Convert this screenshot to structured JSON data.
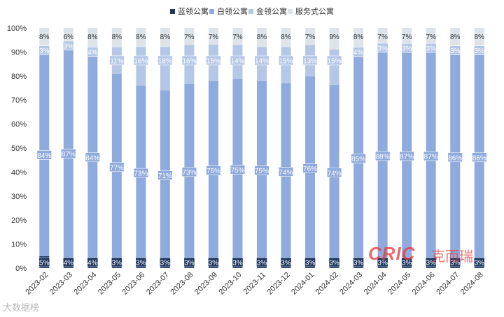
{
  "chart_data": {
    "type": "bar",
    "stacked": true,
    "percent": true,
    "categories": [
      "2023-02",
      "2023-03",
      "2023-04",
      "2023-05",
      "2023-06",
      "2023-07",
      "2023-08",
      "2023-09",
      "2023-10",
      "2023-11",
      "2023-12",
      "2024-01",
      "2024-02",
      "2024-03",
      "2024-04",
      "2024-05",
      "2024-06",
      "2024-07",
      "2024-08"
    ],
    "yticks": [
      "0%",
      "10%",
      "20%",
      "30%",
      "40%",
      "50%",
      "60%",
      "70%",
      "80%",
      "90%",
      "100%"
    ],
    "ylim": [
      0,
      100
    ],
    "legend_position": "top",
    "grid": false,
    "series": [
      {
        "name": "蓝领公寓",
        "color": "#1f3864",
        "label_color": "#ffffff",
        "values": [
          5,
          4,
          4,
          3,
          3,
          3,
          3,
          3,
          3,
          3,
          3,
          3,
          3,
          3,
          3,
          3,
          3,
          3,
          3
        ]
      },
      {
        "name": "白领公寓",
        "color": "#8faadc",
        "label_color": "#ffffff",
        "values": [
          84,
          87,
          84,
          77,
          73,
          71,
          73,
          75,
          75,
          75,
          74,
          76,
          74,
          85,
          88,
          87,
          87,
          86,
          86
        ]
      },
      {
        "name": "金领公寓",
        "color": "#b4c7e7",
        "label_color": "#ffffff",
        "values": [
          3,
          3,
          4,
          11,
          16,
          18,
          16,
          15,
          14,
          14,
          15,
          13,
          15,
          4,
          3,
          3,
          3,
          3,
          3
        ]
      },
      {
        "name": "服务式公寓",
        "color": "#dde3e8",
        "label_color": "#333333",
        "values": [
          8,
          6,
          8,
          8,
          8,
          8,
          7,
          7,
          7,
          8,
          8,
          7,
          9,
          8,
          7,
          7,
          7,
          8,
          8
        ]
      }
    ]
  },
  "watermarks": {
    "left": "大数据榜",
    "brand_latin": "CRIC",
    "brand_cn": "克而瑞"
  }
}
